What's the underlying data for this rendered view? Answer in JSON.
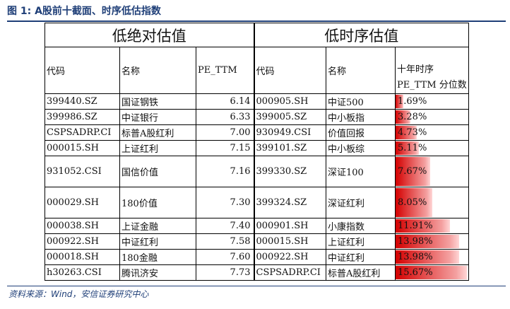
{
  "figure": {
    "title": "图 1:  A股前十截面、时序低估指数",
    "source": "资料来源：Wind，安信证券研究中心"
  },
  "table": {
    "left_header": "低绝对估值",
    "right_header": "低时序估值",
    "columns": {
      "code": "代码",
      "name": "名称",
      "pe": "PE_TTM",
      "code2": "代码",
      "name2": "名称",
      "pct": "十年时序PE_TTM 分位数"
    },
    "rows": [
      {
        "code": "399440.SZ",
        "name": "国证钢铁",
        "pe": "6.14",
        "code2": "000905.SH",
        "name2": "中证500",
        "pct": "1.69%",
        "pct_value": 1.69
      },
      {
        "code": "399986.SZ",
        "name": "中证银行",
        "pe": "6.33",
        "code2": "399005.SZ",
        "name2": "中小板指",
        "pct": "3.28%",
        "pct_value": 3.28
      },
      {
        "code": "CSPSADRP.CI",
        "name": "标普A股红利",
        "pe": "7.00",
        "code2": "930949.CSI",
        "name2": "价值回报",
        "pct": "4.73%",
        "pct_value": 4.73
      },
      {
        "code": "000015.SH",
        "name": "上证红利",
        "pe": "7.15",
        "code2": "399101.SZ",
        "name2": "中小板综",
        "pct": "5.11%",
        "pct_value": 5.11
      },
      {
        "code": "931052.CSI",
        "name": "国信价值",
        "pe": "7.16",
        "code2": "399330.SZ",
        "name2": "深证100",
        "pct": "7.67%",
        "pct_value": 7.67
      },
      {
        "code": "000029.SH",
        "name": "180价值",
        "pe": "7.30",
        "code2": "399324.SZ",
        "name2": "深证红利",
        "pct": "8.05%",
        "pct_value": 8.05
      },
      {
        "code": "000038.SH",
        "name": "上证金融",
        "pe": "7.40",
        "code2": "000901.SH",
        "name2": "小康指数",
        "pct": "11.91%",
        "pct_value": 11.91
      },
      {
        "code": "000922.SH",
        "name": "中证红利",
        "pe": "7.58",
        "code2": "000015.SH",
        "name2": "上证红利",
        "pct": "13.98%",
        "pct_value": 13.98
      },
      {
        "code": "000018.SH",
        "name": "180金融",
        "pe": "7.60",
        "code2": "000922.SH",
        "name2": "中证红利",
        "pct": "13.98%",
        "pct_value": 13.98
      },
      {
        "code": "h30263.CSI",
        "name": "腾讯济安",
        "pe": "7.73",
        "code2": "CSPSADRP.CI",
        "name2": "标普A股红利",
        "pct": "15.67%",
        "pct_value": 15.67
      }
    ]
  },
  "colors": {
    "title": "#1f3f78",
    "bar": "#d40000"
  }
}
